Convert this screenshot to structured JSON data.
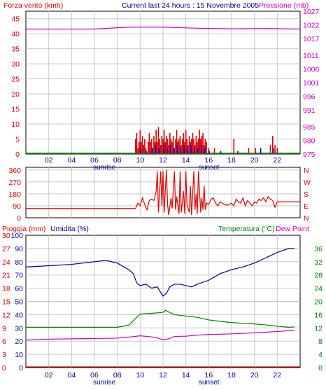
{
  "header": {
    "left_title": "Forza vento (kmh)",
    "center_title": "Current last 24 hours : 15 Novembre 2005",
    "right_title": "Pressione (mb)"
  },
  "x_axis": {
    "ticks": [
      "02",
      "04",
      "06",
      "08",
      "10",
      "12",
      "14",
      "16",
      "18",
      "20",
      "22"
    ],
    "sunrise_label": "sunrise",
    "sunset_label": "sunset"
  },
  "panel3_labels": {
    "rain": "Pioggia (mm)",
    "humidity": "Umidita (%)",
    "temperature": "Temperatura (°C)",
    "dewpoint": "Dew Point"
  },
  "colors": {
    "wind": "#e00000",
    "wind_dir_blue": "#0000cc",
    "pressure": "#cc00cc",
    "green": "#008000",
    "humidity": "#000099",
    "dew": "#cc00cc",
    "rain": "#e00000",
    "temp_axis": "#008000",
    "grid": "#c8c8c8"
  },
  "chart_data": [
    {
      "type": "bar",
      "name": "wind_pressure",
      "x_range": [
        0,
        24
      ],
      "y_left": {
        "label": "Forza vento (kmh)",
        "ticks": [
          0,
          5,
          10,
          15,
          20,
          25,
          30,
          35,
          40,
          45
        ],
        "range": [
          0,
          47.5
        ]
      },
      "y_right": {
        "label": "Pressione (mb)",
        "ticks": [
          975,
          980,
          985,
          991,
          996,
          1001,
          1006,
          1011,
          1017,
          1022,
          1027
        ],
        "range": [
          975,
          1027
        ]
      },
      "grid": true,
      "wind_gust_bars": [
        [
          9.6,
          5
        ],
        [
          9.7,
          7
        ],
        [
          9.8,
          2
        ],
        [
          9.9,
          4
        ],
        [
          10.0,
          8
        ],
        [
          10.1,
          4
        ],
        [
          10.2,
          6
        ],
        [
          10.3,
          3
        ],
        [
          10.4,
          5
        ],
        [
          10.5,
          2
        ],
        [
          10.7,
          4
        ],
        [
          10.8,
          7
        ],
        [
          10.9,
          4
        ],
        [
          11.0,
          5
        ],
        [
          11.1,
          2
        ],
        [
          11.2,
          6
        ],
        [
          11.3,
          4
        ],
        [
          11.4,
          8
        ],
        [
          11.5,
          4
        ],
        [
          11.6,
          9
        ],
        [
          11.7,
          5
        ],
        [
          11.8,
          3
        ],
        [
          11.9,
          6
        ],
        [
          12.0,
          5
        ],
        [
          12.1,
          8
        ],
        [
          12.2,
          4
        ],
        [
          12.3,
          6
        ],
        [
          12.4,
          5
        ],
        [
          12.5,
          3
        ],
        [
          12.6,
          7
        ],
        [
          12.7,
          5
        ],
        [
          12.8,
          4
        ],
        [
          12.9,
          6
        ],
        [
          13.0,
          2
        ],
        [
          13.1,
          5
        ],
        [
          13.2,
          8
        ],
        [
          13.3,
          4
        ],
        [
          13.4,
          5
        ],
        [
          13.5,
          6
        ],
        [
          13.6,
          3
        ],
        [
          13.7,
          5
        ],
        [
          13.8,
          7
        ],
        [
          13.9,
          4
        ],
        [
          14.0,
          8
        ],
        [
          14.1,
          5
        ],
        [
          14.2,
          3
        ],
        [
          14.3,
          6
        ],
        [
          14.4,
          4
        ],
        [
          14.5,
          5
        ],
        [
          14.6,
          7
        ],
        [
          14.7,
          5
        ],
        [
          14.8,
          3
        ],
        [
          14.9,
          6
        ],
        [
          15.0,
          4
        ],
        [
          15.1,
          5
        ],
        [
          15.2,
          8
        ],
        [
          15.3,
          5
        ],
        [
          15.4,
          6
        ],
        [
          15.5,
          7
        ],
        [
          15.6,
          3
        ],
        [
          15.7,
          5
        ],
        [
          15.8,
          4
        ],
        [
          16.0,
          2
        ],
        [
          16.5,
          2
        ],
        [
          18.2,
          5
        ],
        [
          19.5,
          2
        ],
        [
          20.1,
          2
        ],
        [
          21.4,
          3
        ],
        [
          21.6,
          6
        ],
        [
          21.8,
          3
        ],
        [
          22.0,
          2
        ]
      ],
      "wind_avg_bars": [
        [
          10.0,
          2
        ],
        [
          10.5,
          1
        ],
        [
          11.0,
          2
        ],
        [
          11.3,
          3
        ],
        [
          11.6,
          2
        ],
        [
          12.0,
          3
        ],
        [
          12.3,
          2
        ],
        [
          12.6,
          3
        ],
        [
          12.9,
          2
        ],
        [
          13.2,
          3
        ],
        [
          13.5,
          2
        ],
        [
          13.8,
          3
        ],
        [
          14.1,
          2
        ],
        [
          14.4,
          3
        ],
        [
          14.7,
          2
        ],
        [
          15.0,
          2
        ],
        [
          15.3,
          3
        ],
        [
          15.6,
          2
        ],
        [
          16.0,
          1
        ],
        [
          17.0,
          1
        ],
        [
          18.5,
          1
        ],
        [
          20.5,
          2
        ],
        [
          21.6,
          2
        ]
      ],
      "pressure_line": [
        [
          0,
          1020.5
        ],
        [
          6,
          1020.5
        ],
        [
          9,
          1021.2
        ],
        [
          12,
          1021.2
        ],
        [
          15,
          1020.8
        ],
        [
          18,
          1020.6
        ],
        [
          21,
          1020.7
        ],
        [
          24,
          1020.5
        ]
      ]
    },
    {
      "type": "line",
      "name": "wind_direction",
      "x_range": [
        0,
        24
      ],
      "y_left": {
        "ticks": [
          0,
          90,
          180,
          270,
          360
        ],
        "range": [
          0,
          380
        ]
      },
      "y_right": {
        "ticks": [
          "N",
          "E",
          "S",
          "W",
          "N"
        ]
      },
      "grid": true,
      "direction_line": [
        [
          0,
          70
        ],
        [
          9.6,
          70
        ],
        [
          9.8,
          110
        ],
        [
          10.0,
          90
        ],
        [
          10.2,
          150
        ],
        [
          10.4,
          100
        ],
        [
          10.6,
          60
        ],
        [
          10.8,
          130
        ],
        [
          11.0,
          140
        ],
        [
          11.2,
          130
        ],
        [
          11.4,
          200
        ],
        [
          11.5,
          350
        ],
        [
          11.6,
          40
        ],
        [
          11.8,
          350
        ],
        [
          11.9,
          90
        ],
        [
          12.0,
          350
        ],
        [
          12.1,
          40
        ],
        [
          12.3,
          360
        ],
        [
          12.4,
          100
        ],
        [
          12.5,
          20
        ],
        [
          12.7,
          150
        ],
        [
          12.8,
          70
        ],
        [
          13.0,
          350
        ],
        [
          13.1,
          60
        ],
        [
          13.2,
          160
        ],
        [
          13.4,
          30
        ],
        [
          13.5,
          350
        ],
        [
          13.6,
          40
        ],
        [
          13.8,
          200
        ],
        [
          13.9,
          30
        ],
        [
          14.0,
          350
        ],
        [
          14.1,
          100
        ],
        [
          14.3,
          40
        ],
        [
          14.4,
          240
        ],
        [
          14.5,
          20
        ],
        [
          14.7,
          350
        ],
        [
          14.8,
          60
        ],
        [
          14.9,
          180
        ],
        [
          15.0,
          30
        ],
        [
          15.1,
          350
        ],
        [
          15.3,
          40
        ],
        [
          15.4,
          150
        ],
        [
          15.5,
          60
        ],
        [
          15.6,
          240
        ],
        [
          15.7,
          60
        ],
        [
          15.8,
          110
        ],
        [
          16.0,
          100
        ],
        [
          16.2,
          140
        ],
        [
          16.4,
          150
        ],
        [
          16.6,
          110
        ],
        [
          16.8,
          90
        ],
        [
          17.0,
          120
        ],
        [
          17.2,
          110
        ],
        [
          17.4,
          100
        ],
        [
          17.6,
          95
        ],
        [
          17.8,
          100
        ],
        [
          18.0,
          110
        ],
        [
          18.2,
          90
        ],
        [
          18.4,
          140
        ],
        [
          18.6,
          120
        ],
        [
          18.8,
          110
        ],
        [
          19.0,
          150
        ],
        [
          19.2,
          90
        ],
        [
          19.4,
          130
        ],
        [
          19.6,
          110
        ],
        [
          19.8,
          90
        ],
        [
          20.0,
          120
        ],
        [
          20.2,
          110
        ],
        [
          20.4,
          140
        ],
        [
          20.6,
          130
        ],
        [
          20.8,
          150
        ],
        [
          21.0,
          120
        ],
        [
          21.2,
          160
        ],
        [
          21.4,
          140
        ],
        [
          21.6,
          130
        ],
        [
          21.8,
          80
        ],
        [
          22.0,
          120
        ],
        [
          24,
          120
        ]
      ]
    },
    {
      "type": "line",
      "name": "rain_humidity_temperature",
      "x_range": [
        0,
        24
      ],
      "y_left_rain": {
        "label": "Pioggia (mm)",
        "ticks": [
          0,
          3,
          6,
          9,
          12,
          15,
          18,
          21,
          24,
          27,
          30
        ]
      },
      "y_left_humidity": {
        "label": "Umidita (%)",
        "ticks": [
          0,
          10,
          20,
          30,
          40,
          50,
          60,
          70,
          80,
          90,
          100
        ]
      },
      "y_right": {
        "label": "Temperatura (°C)",
        "ticks": [
          0,
          4,
          8,
          12,
          16,
          20,
          24,
          28,
          32,
          36
        ],
        "range": [
          0,
          40
        ]
      },
      "grid": true,
      "humidity_line": [
        [
          0,
          76
        ],
        [
          2,
          77
        ],
        [
          4,
          78
        ],
        [
          6,
          80
        ],
        [
          7,
          81
        ],
        [
          8,
          79
        ],
        [
          9,
          74
        ],
        [
          9.4,
          71
        ],
        [
          9.7,
          64
        ],
        [
          10,
          62
        ],
        [
          10.5,
          63
        ],
        [
          11,
          60
        ],
        [
          11.5,
          61
        ],
        [
          12,
          54
        ],
        [
          12.3,
          56
        ],
        [
          12.6,
          61
        ],
        [
          13,
          63
        ],
        [
          13.5,
          63
        ],
        [
          14,
          62
        ],
        [
          14.5,
          61
        ],
        [
          15,
          63
        ],
        [
          16,
          66
        ],
        [
          17,
          71
        ],
        [
          18,
          74
        ],
        [
          19,
          76
        ],
        [
          20,
          79
        ],
        [
          21,
          83
        ],
        [
          22,
          87
        ],
        [
          23,
          90
        ],
        [
          23.5,
          90
        ]
      ],
      "temperature_line": [
        [
          0,
          12.2
        ],
        [
          2,
          12.2
        ],
        [
          4,
          12.2
        ],
        [
          6,
          12.2
        ],
        [
          8,
          12.2
        ],
        [
          9,
          12.8
        ],
        [
          9.5,
          14.5
        ],
        [
          10,
          16.2
        ],
        [
          11,
          16.4
        ],
        [
          12,
          16.7
        ],
        [
          12.2,
          17.3
        ],
        [
          13,
          16.0
        ],
        [
          14,
          15.6
        ],
        [
          15,
          15.2
        ],
        [
          16,
          14.4
        ],
        [
          17,
          14.0
        ],
        [
          18,
          13.6
        ],
        [
          19,
          13.4
        ],
        [
          20,
          13.2
        ],
        [
          21,
          12.9
        ],
        [
          22,
          12.5
        ],
        [
          23,
          12.2
        ],
        [
          23.5,
          12.3
        ]
      ],
      "dewpoint_line": [
        [
          0,
          8.3
        ],
        [
          2,
          8.6
        ],
        [
          4,
          8.7
        ],
        [
          6,
          8.8
        ],
        [
          8,
          8.9
        ],
        [
          9,
          9.2
        ],
        [
          10,
          9.6
        ],
        [
          11,
          9.3
        ],
        [
          11.5,
          9.0
        ],
        [
          12,
          8.4
        ],
        [
          12.5,
          8.7
        ],
        [
          13,
          9.4
        ],
        [
          14,
          9.5
        ],
        [
          15,
          9.8
        ],
        [
          16,
          10.0
        ],
        [
          18,
          10.2
        ],
        [
          20,
          10.5
        ],
        [
          22,
          10.9
        ],
        [
          23.5,
          11.3
        ]
      ],
      "rain_line": [
        [
          0,
          0
        ],
        [
          24,
          0
        ]
      ]
    }
  ]
}
